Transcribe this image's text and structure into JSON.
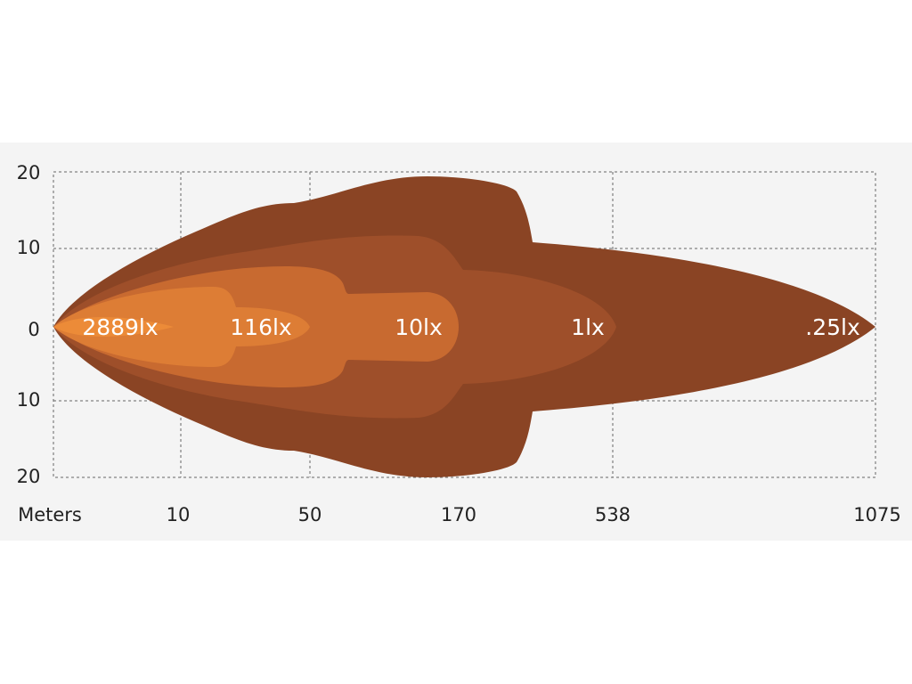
{
  "y_axis": {
    "labels": [
      "20",
      "10",
      "0",
      "10",
      "20"
    ]
  },
  "x_axis": {
    "title": "Meters",
    "labels": [
      "10",
      "50",
      "170",
      "538",
      "1075"
    ]
  },
  "zones": [
    {
      "label": "2889lx"
    },
    {
      "label": "116lx"
    },
    {
      "label": "10lx"
    },
    {
      "label": "1lx"
    },
    {
      "label": ".25lx"
    }
  ]
}
